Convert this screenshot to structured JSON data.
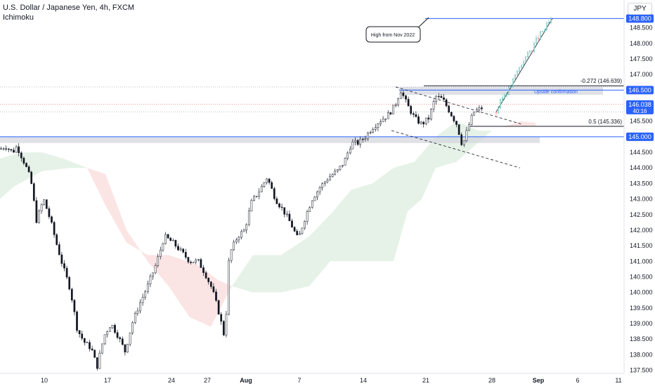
{
  "header": {
    "title": "U.S. Dollar / Japanese Yen, 4h, FXCM",
    "indicator": "Ichimoku"
  },
  "currency_button": "JPY",
  "colors": {
    "up": "#131722",
    "down": "#131722",
    "blue_line": "#2962ff",
    "price_tag": "#2962ff",
    "cloud_green": "#e3f1e4",
    "cloud_red": "#fbe1e1",
    "zone_gray": "#d1d4dc",
    "projection_up": "#26a69a",
    "projection_down": "#ef5350"
  },
  "chart_data": {
    "type": "candlestick",
    "y_axis": {
      "min": 137.5,
      "max": 149.0,
      "ticks": [
        "137.500",
        "138.000",
        "138.500",
        "139.000",
        "139.500",
        "140.000",
        "140.500",
        "141.000",
        "141.500",
        "142.000",
        "142.500",
        "143.000",
        "143.500",
        "144.000",
        "144.500",
        "145.000",
        "145.500",
        "146.000",
        "146.500",
        "147.000",
        "147.500",
        "148.000",
        "148.500",
        "148.800"
      ]
    },
    "x_axis": {
      "labels": [
        "10",
        "17",
        "24",
        "27",
        "Aug",
        "7",
        "14",
        "21",
        "28",
        "Sep",
        "6",
        "11"
      ],
      "bold_labels": [
        "Aug",
        "Sep"
      ]
    },
    "price_path": [
      [
        0,
        144.6
      ],
      [
        8,
        144.7
      ],
      [
        18,
        144.5
      ],
      [
        24,
        144.7
      ],
      [
        36,
        144.1
      ],
      [
        44,
        143.6
      ],
      [
        52,
        142.3
      ],
      [
        62,
        143.0
      ],
      [
        72,
        142.3
      ],
      [
        80,
        141.6
      ],
      [
        90,
        140.8
      ],
      [
        100,
        140.1
      ],
      [
        110,
        138.8
      ],
      [
        120,
        138.4
      ],
      [
        130,
        138.2
      ],
      [
        138,
        137.6
      ],
      [
        148,
        138.6
      ],
      [
        158,
        139.0
      ],
      [
        168,
        138.6
      ],
      [
        178,
        138.1
      ],
      [
        188,
        139.0
      ],
      [
        198,
        139.6
      ],
      [
        210,
        140.2
      ],
      [
        222,
        140.9
      ],
      [
        234,
        141.8
      ],
      [
        246,
        141.6
      ],
      [
        258,
        141.3
      ],
      [
        270,
        141.0
      ],
      [
        282,
        141.0
      ],
      [
        292,
        140.6
      ],
      [
        302,
        140.1
      ],
      [
        312,
        139.3
      ],
      [
        320,
        138.5
      ],
      [
        326,
        141.2
      ],
      [
        338,
        141.8
      ],
      [
        348,
        142.0
      ],
      [
        358,
        142.9
      ],
      [
        370,
        143.3
      ],
      [
        380,
        143.7
      ],
      [
        392,
        143.0
      ],
      [
        404,
        142.6
      ],
      [
        414,
        142.2
      ],
      [
        424,
        141.7
      ],
      [
        434,
        142.4
      ],
      [
        444,
        143.0
      ],
      [
        456,
        143.4
      ],
      [
        468,
        143.7
      ],
      [
        480,
        143.9
      ],
      [
        490,
        144.2
      ],
      [
        500,
        144.8
      ],
      [
        510,
        144.8
      ],
      [
        520,
        145.0
      ],
      [
        530,
        145.3
      ],
      [
        540,
        145.5
      ],
      [
        552,
        145.7
      ],
      [
        562,
        146.0
      ],
      [
        570,
        146.5
      ],
      [
        580,
        146.0
      ],
      [
        590,
        145.6
      ],
      [
        600,
        145.4
      ],
      [
        610,
        145.6
      ],
      [
        620,
        146.3
      ],
      [
        630,
        146.2
      ],
      [
        640,
        145.8
      ],
      [
        650,
        145.4
      ],
      [
        658,
        144.7
      ],
      [
        666,
        145.3
      ],
      [
        674,
        145.8
      ],
      [
        684,
        145.9
      ],
      [
        690,
        146.0
      ]
    ],
    "projection_path": [
      [
        706,
        145.8
      ],
      [
        716,
        146.3
      ],
      [
        726,
        146.6
      ],
      [
        736,
        147.1
      ],
      [
        746,
        147.5
      ],
      [
        756,
        147.8
      ],
      [
        766,
        148.2
      ],
      [
        776,
        148.5
      ],
      [
        786,
        148.8
      ]
    ],
    "cloud_segments": [
      {
        "color": "green",
        "top": [
          [
            0,
            144.3
          ],
          [
            30,
            144.5
          ],
          [
            60,
            144.5
          ],
          [
            90,
            144.3
          ],
          [
            124,
            144.0
          ]
        ],
        "bottom": [
          [
            0,
            143.0
          ],
          [
            20,
            143.4
          ],
          [
            60,
            143.9
          ],
          [
            100,
            144.0
          ],
          [
            124,
            144.0
          ]
        ]
      },
      {
        "color": "red",
        "top": [
          [
            124,
            144.0
          ],
          [
            150,
            142.8
          ],
          [
            180,
            141.6
          ],
          [
            210,
            141.2
          ],
          [
            240,
            141.2
          ],
          [
            280,
            140.9
          ],
          [
            310,
            140.4
          ],
          [
            330,
            140.2
          ]
        ],
        "bottom": [
          [
            124,
            144.0
          ],
          [
            150,
            143.8
          ],
          [
            180,
            142.0
          ],
          [
            210,
            141.0
          ],
          [
            240,
            140.2
          ],
          [
            270,
            139.2
          ],
          [
            300,
            138.9
          ],
          [
            330,
            140.2
          ]
        ]
      },
      {
        "color": "green",
        "top": [
          [
            330,
            140.2
          ],
          [
            360,
            141.2
          ],
          [
            400,
            141.2
          ],
          [
            440,
            141.8
          ],
          [
            470,
            142.5
          ],
          [
            500,
            143.3
          ],
          [
            530,
            143.5
          ],
          [
            560,
            144.0
          ],
          [
            590,
            144.2
          ],
          [
            620,
            145.0
          ],
          [
            650,
            145.5
          ],
          [
            680,
            145.2
          ],
          [
            700,
            145.2
          ]
        ],
        "bottom": [
          [
            330,
            140.2
          ],
          [
            360,
            140.0
          ],
          [
            400,
            140.0
          ],
          [
            420,
            140.1
          ],
          [
            440,
            140.2
          ],
          [
            470,
            141.0
          ],
          [
            500,
            141.0
          ],
          [
            530,
            141.0
          ],
          [
            560,
            141.0
          ],
          [
            580,
            142.6
          ],
          [
            600,
            143.0
          ],
          [
            620,
            144.0
          ],
          [
            650,
            144.2
          ],
          [
            680,
            144.8
          ],
          [
            700,
            145.2
          ]
        ]
      },
      {
        "color": "red",
        "top": [
          [
            715,
            145.3
          ],
          [
            740,
            145.5
          ],
          [
            762,
            145.45
          ]
        ],
        "bottom": [
          [
            715,
            145.3
          ],
          [
            740,
            145.35
          ],
          [
            762,
            145.35
          ]
        ]
      }
    ],
    "horizontal_levels": [
      {
        "value": 148.8,
        "label": "148.800",
        "color": "blue",
        "x_start": 605
      },
      {
        "value": 146.639,
        "label": "-0.272 (146.639)",
        "color": "black",
        "x_start": 603,
        "x_end": 888
      },
      {
        "value": 146.5,
        "label": "146.500",
        "color": "blue",
        "x_start": 568
      },
      {
        "value": 145.336,
        "label": "0.5 (145.336)",
        "color": "black",
        "x_start": 668,
        "x_end": 888
      },
      {
        "value": 145.0,
        "label": "145.000",
        "color": "blue",
        "x_start": 0
      }
    ],
    "dotted_levels": [
      146.6,
      146.05,
      145.8
    ],
    "zones": [
      {
        "top": 146.6,
        "bottom": 146.35,
        "x_start": 568,
        "x_end": 858
      },
      {
        "top": 145.0,
        "bottom": 144.8,
        "x_start": 0,
        "x_end": 768
      }
    ],
    "trendlines": [
      [
        [
          563,
          146.6
        ],
        [
          743,
          145.4
        ]
      ],
      [
        [
          557,
          145.2
        ],
        [
          740,
          144.0
        ]
      ],
      [
        [
          706,
          145.8
        ],
        [
          786,
          148.8
        ]
      ]
    ],
    "current_price": "146.038",
    "countdown": "40:16",
    "annotations": [
      {
        "text": "High from Nov 2022",
        "kind": "callout"
      },
      {
        "text": "Upside confirmation",
        "kind": "blue"
      }
    ]
  }
}
